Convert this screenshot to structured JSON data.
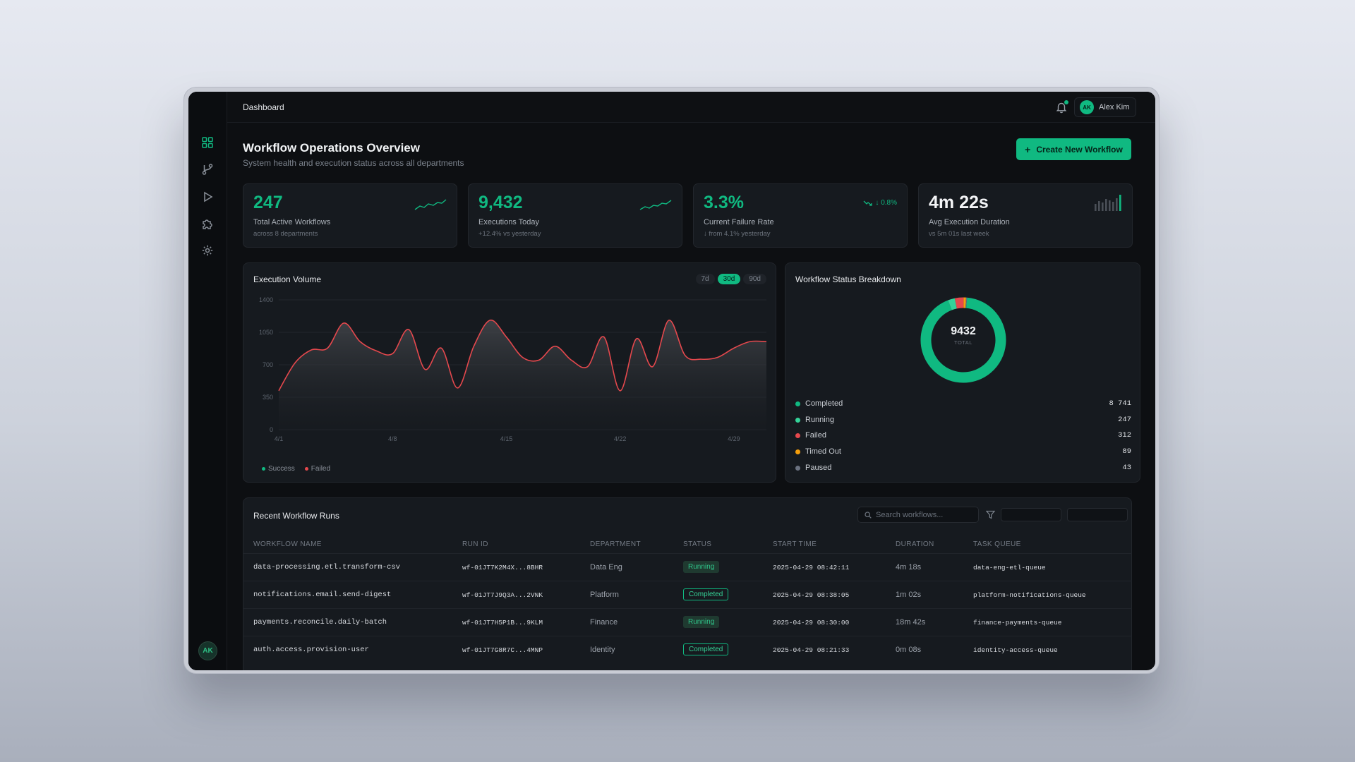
{
  "topbar": {
    "breadcrumb": "Dashboard",
    "user_initials": "AK",
    "user_name": "Alex Kim"
  },
  "sidebar": {
    "items": [
      {
        "name": "dashboard",
        "icon": "grid-icon",
        "active": true
      },
      {
        "name": "workflows",
        "icon": "branch-icon",
        "active": false
      },
      {
        "name": "executions",
        "icon": "play-icon",
        "active": false
      },
      {
        "name": "integrations",
        "icon": "puzzle-icon",
        "active": false
      },
      {
        "name": "settings",
        "icon": "gear-icon",
        "active": false
      }
    ],
    "avatar_initials": "AK"
  },
  "header": {
    "title": "Workflow Operations Overview",
    "subtitle": "System health and execution status across all departments",
    "create_button": "Create New Workflow"
  },
  "stats": [
    {
      "value": "247",
      "label": "Total Active Workflows",
      "note": "across 8 departments"
    },
    {
      "value": "9,432",
      "label": "Executions Today",
      "note": "+12.4% vs yesterday"
    },
    {
      "value": "3.3%",
      "label": "Current Failure Rate",
      "note": "↓ from 4.1% yesterday",
      "delta": "↓ 0.8%"
    },
    {
      "value": "4m 22s",
      "label": "Avg Execution Duration",
      "note": "vs 5m 01s last week"
    }
  ],
  "volume": {
    "title": "Execution Volume",
    "ranges": [
      "7d",
      "30d",
      "90d"
    ],
    "active_range": "30d",
    "legend": [
      "Success",
      "Failed"
    ]
  },
  "chart_data": {
    "type": "area",
    "x": [
      "4/1",
      "4/2",
      "4/3",
      "4/4",
      "4/5",
      "4/6",
      "4/7",
      "4/8",
      "4/9",
      "4/10",
      "4/11",
      "4/12",
      "4/13",
      "4/14",
      "4/15",
      "4/16",
      "4/17",
      "4/18",
      "4/19",
      "4/20",
      "4/21",
      "4/22",
      "4/23",
      "4/24",
      "4/25",
      "4/26",
      "4/27",
      "4/28",
      "4/29",
      "4/30",
      "5/1"
    ],
    "x_ticks": [
      "4/1",
      "4/8",
      "4/15",
      "4/22",
      "4/29"
    ],
    "y_ticks": [
      0,
      350,
      700,
      1050,
      1400
    ],
    "ylim": [
      0,
      1400
    ],
    "series": [
      {
        "name": "Success",
        "color": "#3a3d42",
        "values": [
          420,
          720,
          860,
          880,
          1150,
          950,
          850,
          820,
          1080,
          650,
          880,
          450,
          900,
          1180,
          1000,
          780,
          750,
          900,
          750,
          680,
          1000,
          420,
          980,
          680,
          1180,
          800,
          760,
          780,
          880,
          950,
          950
        ]
      },
      {
        "name": "Failed",
        "color": "#e5484d",
        "values": [
          420,
          720,
          860,
          880,
          1150,
          950,
          850,
          820,
          1080,
          650,
          880,
          450,
          900,
          1180,
          1000,
          780,
          750,
          900,
          750,
          680,
          1000,
          420,
          980,
          680,
          1180,
          800,
          760,
          780,
          880,
          950,
          950
        ]
      }
    ]
  },
  "breakdown": {
    "title": "Workflow Status Breakdown",
    "total": "9432",
    "total_label": "TOTAL",
    "items": [
      {
        "label": "Completed",
        "count": "8 741",
        "value": 8741,
        "color": "#10b981"
      },
      {
        "label": "Running",
        "count": "247",
        "value": 247,
        "color": "#34d399"
      },
      {
        "label": "Failed",
        "count": "312",
        "value": 312,
        "color": "#e5484d"
      },
      {
        "label": "Timed Out",
        "count": "89",
        "value": 89,
        "color": "#f59e0b"
      },
      {
        "label": "Paused",
        "count": "43",
        "value": 43,
        "color": "#6b7280"
      }
    ]
  },
  "runs": {
    "title": "Recent Workflow Runs",
    "search_placeholder": "Search workflows...",
    "columns": [
      "WORKFLOW NAME",
      "RUN ID",
      "DEPARTMENT",
      "STATUS",
      "START TIME",
      "DURATION",
      "TASK QUEUE"
    ],
    "rows": [
      {
        "name": "data-processing.etl.transform-csv",
        "run_id": "wf-01JT7K2M4X...8BHR",
        "dept": "Data Eng",
        "status": "Running",
        "start": "2025-04-29 08:42:11",
        "duration": "4m 18s",
        "queue": "data-eng-etl-queue"
      },
      {
        "name": "notifications.email.send-digest",
        "run_id": "wf-01JT7J9Q3A...2VNK",
        "dept": "Platform",
        "status": "Completed",
        "start": "2025-04-29 08:38:05",
        "duration": "1m 02s",
        "queue": "platform-notifications-queue"
      },
      {
        "name": "payments.reconcile.daily-batch",
        "run_id": "wf-01JT7H5P1B...9KLM",
        "dept": "Finance",
        "status": "Running",
        "start": "2025-04-29 08:30:00",
        "duration": "18m 42s",
        "queue": "finance-payments-queue"
      },
      {
        "name": "auth.access.provision-user",
        "run_id": "wf-01JT7G8R7C...4MNP",
        "dept": "Identity",
        "status": "Completed",
        "start": "2025-04-29 08:21:33",
        "duration": "0m 08s",
        "queue": "identity-access-queue"
      }
    ]
  }
}
